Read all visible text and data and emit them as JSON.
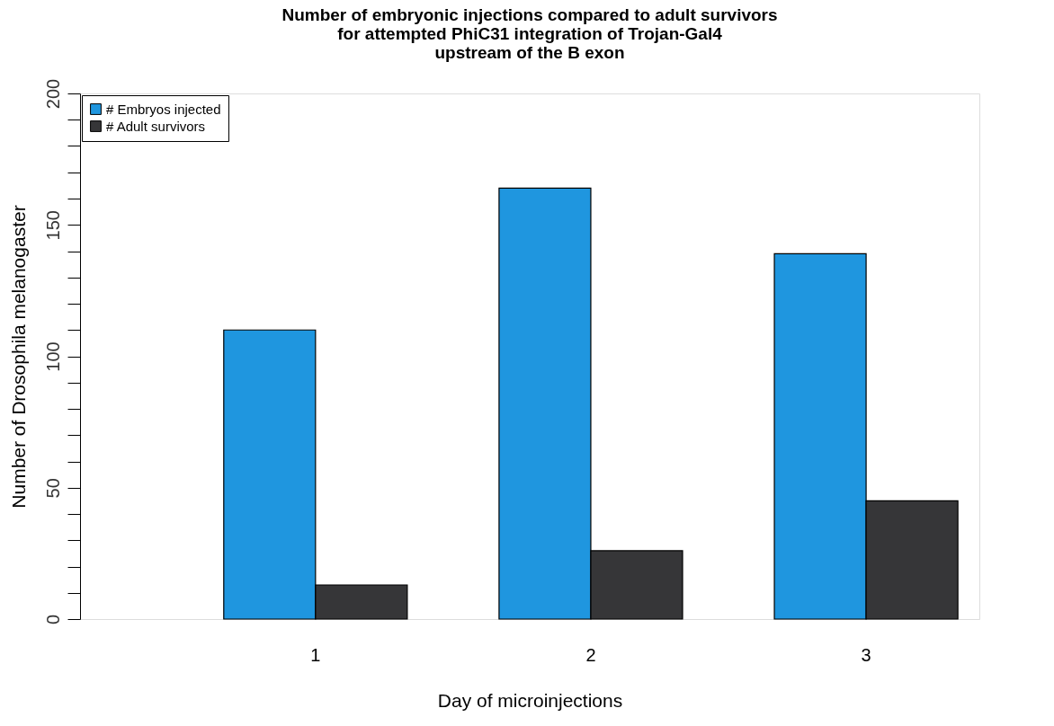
{
  "chart_data": {
    "type": "bar",
    "title": "Number of embryonic injections compared to adult survivors\nfor attempted PhiC31 integration of Trojan-Gal4\nupstream of the B exon",
    "xlabel": "Day of microinjections",
    "ylabel": "Number of Drosophila melanogaster",
    "categories": [
      "1",
      "2",
      "3"
    ],
    "series": [
      {
        "name": "# Embryos injected",
        "color": "#1f96df",
        "values": [
          110,
          164,
          139
        ]
      },
      {
        "name": "# Adult survivors",
        "color": "#363638",
        "values": [
          13,
          26,
          45
        ]
      }
    ],
    "ylim": [
      0,
      200
    ],
    "yticks": [
      0,
      {
        "value": 10,
        "label": null
      },
      {
        "value": 20,
        "label": null
      },
      {
        "value": 30,
        "label": null
      },
      {
        "value": 40,
        "label": null
      },
      50,
      {
        "value": 60,
        "label": null
      },
      {
        "value": 70,
        "label": null
      },
      {
        "value": 80,
        "label": null
      },
      {
        "value": 90,
        "label": null
      },
      100,
      {
        "value": 110,
        "label": null
      },
      {
        "value": 120,
        "label": null
      },
      {
        "value": 130,
        "label": null
      },
      {
        "value": 140,
        "label": null
      },
      150,
      {
        "value": 160,
        "label": null
      },
      {
        "value": 170,
        "label": null
      },
      {
        "value": 180,
        "label": null
      },
      {
        "value": 190,
        "label": null
      },
      200
    ],
    "legend": "top left",
    "grid": false
  }
}
